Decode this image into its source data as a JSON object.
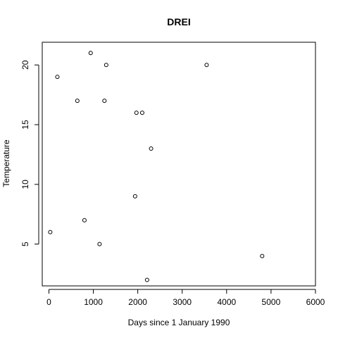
{
  "chart_data": {
    "type": "scatter",
    "title": "DREI",
    "xlabel": "Days since 1 January 1990",
    "ylabel": "Temperature",
    "xlim": [
      -150,
      6000
    ],
    "ylim": [
      1.5,
      21.9
    ],
    "xticks": [
      0,
      1000,
      2000,
      3000,
      4000,
      5000,
      6000
    ],
    "yticks": [
      5,
      10,
      15,
      20
    ],
    "points": [
      {
        "x": 30,
        "y": 6
      },
      {
        "x": 190,
        "y": 19
      },
      {
        "x": 640,
        "y": 17
      },
      {
        "x": 800,
        "y": 7
      },
      {
        "x": 940,
        "y": 21
      },
      {
        "x": 1140,
        "y": 5
      },
      {
        "x": 1250,
        "y": 17
      },
      {
        "x": 1290,
        "y": 20
      },
      {
        "x": 1940,
        "y": 9
      },
      {
        "x": 1970,
        "y": 16
      },
      {
        "x": 2100,
        "y": 16
      },
      {
        "x": 2210,
        "y": 2
      },
      {
        "x": 2300,
        "y": 13
      },
      {
        "x": 3550,
        "y": 20
      },
      {
        "x": 4800,
        "y": 4
      }
    ]
  }
}
